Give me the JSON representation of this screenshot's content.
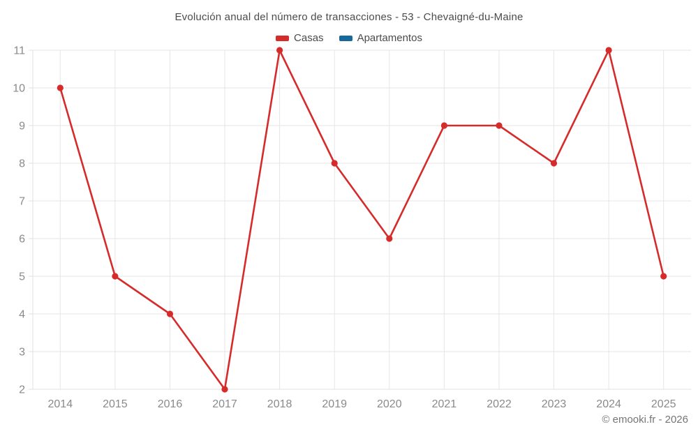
{
  "chart_data": {
    "type": "line",
    "title": "Evolución anual del número de transacciones - 53 - Chevaigné-du-Maine",
    "categories": [
      "2014",
      "2015",
      "2016",
      "2017",
      "2018",
      "2019",
      "2020",
      "2021",
      "2022",
      "2023",
      "2024",
      "2025"
    ],
    "series": [
      {
        "name": "Casas",
        "color": "#d62b2b",
        "values": [
          10,
          5,
          4,
          2,
          11,
          8,
          6,
          9,
          9,
          8,
          11,
          5
        ]
      },
      {
        "name": "Apartamentos",
        "color": "#17699c",
        "values": []
      }
    ],
    "xlabel": "",
    "ylabel": "",
    "ylim": [
      2,
      11
    ],
    "yticks": [
      2,
      3,
      4,
      5,
      6,
      7,
      8,
      9,
      10,
      11
    ],
    "grid": true,
    "legend_position": "top",
    "colors": {
      "grid": "#e6e6e6",
      "axis": "#e0e0e0",
      "tick_text": "#8a8a8a",
      "title_text": "#4b4b4b"
    }
  },
  "footer": {
    "text": "© emooki.fr - 2026"
  }
}
